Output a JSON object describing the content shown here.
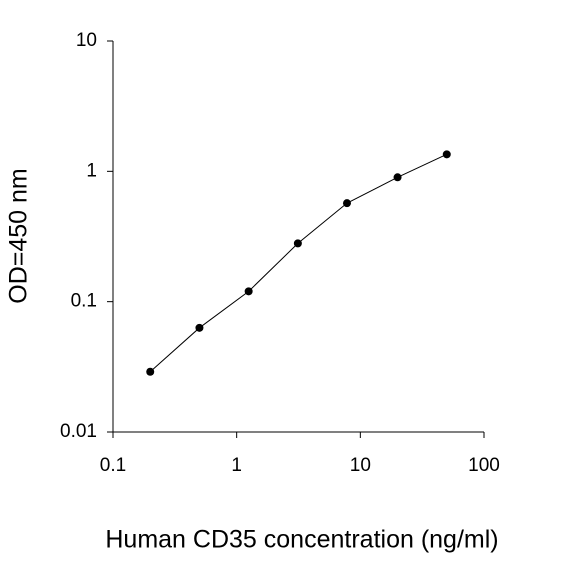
{
  "chart_data": {
    "type": "line",
    "x_label": "Human CD35 concentration (ng/ml)",
    "y_label": "OD=450 nm",
    "x": [
      0.2,
      0.5,
      1.25,
      3.125,
      7.8,
      20,
      50
    ],
    "series": [
      {
        "color": "#000000",
        "values": [
          0.029,
          0.063,
          0.12,
          0.28,
          0.57,
          0.9,
          1.35
        ]
      }
    ],
    "xscale": "log",
    "yscale": "log",
    "xlim": [
      0.1,
      100
    ],
    "xticks": [
      0.1,
      1,
      10,
      100
    ],
    "ylim": [
      0.01,
      10
    ],
    "yticks": [
      0.01,
      0.1,
      1,
      10
    ],
    "markers": true
  }
}
